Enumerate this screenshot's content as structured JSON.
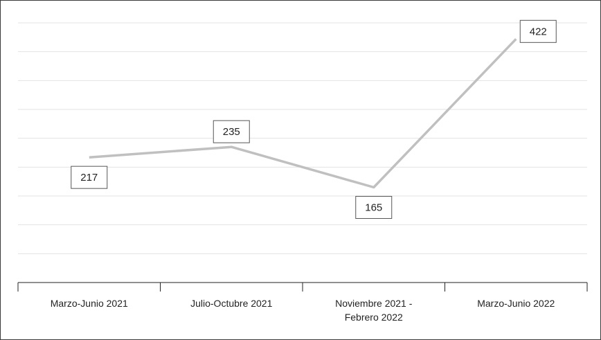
{
  "chart_data": {
    "type": "line",
    "title": "",
    "xlabel": "",
    "ylabel": "",
    "categories": [
      [
        "Marzo-Junio 2021"
      ],
      [
        "Julio-Octubre 2021"
      ],
      [
        "Noviembre 2021 -",
        "Febrero 2022"
      ],
      [
        "Marzo-Junio 2022"
      ]
    ],
    "series": [
      {
        "values": [
          217,
          235,
          165,
          422
        ]
      }
    ],
    "ylim": [
      0,
      450
    ],
    "grid": true,
    "legend": "none",
    "line_color": "#c0c0c0"
  }
}
